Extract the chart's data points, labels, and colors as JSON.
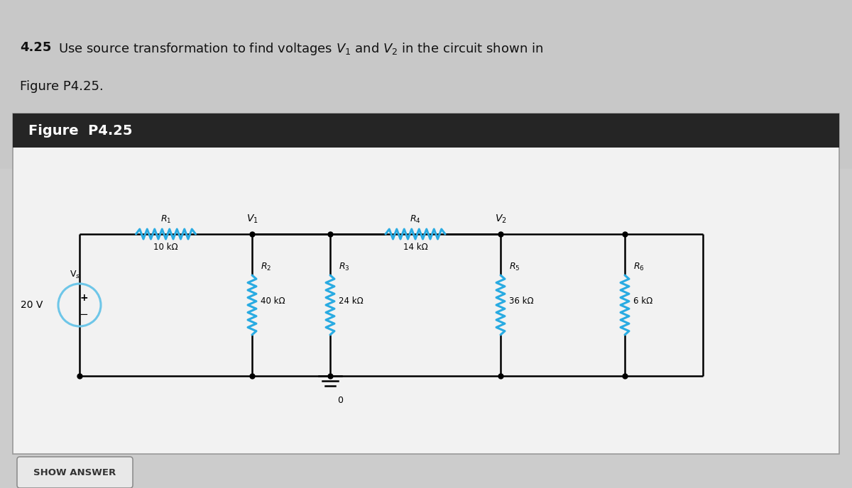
{
  "bg_color": "#cccccc",
  "panel_bg": "#f0f0f0",
  "header_bg": "#222222",
  "header_text_color": "#ffffff",
  "resistor_color": "#29abe2",
  "wire_color": "#000000",
  "source_voltage": "20 V",
  "source_label": "V$_s$",
  "R1_label": "$R_1$",
  "R1_val": "10 kΩ",
  "R2_label": "$R_2$",
  "R2_val": "40 kΩ",
  "R3_label": "$R_3$",
  "R3_val": "24 kΩ",
  "R4_label": "$R_4$",
  "R4_val": "14 kΩ",
  "R5_label": "$R_5$",
  "R5_val": "36 kΩ",
  "R6_label": "$R_6$",
  "R6_val": "6 kΩ",
  "V1_label": "$V_1$",
  "V2_label": "$V_2$",
  "figure_label": "Figure  P4.25",
  "show_answer_text": "SHOW ANSWER"
}
